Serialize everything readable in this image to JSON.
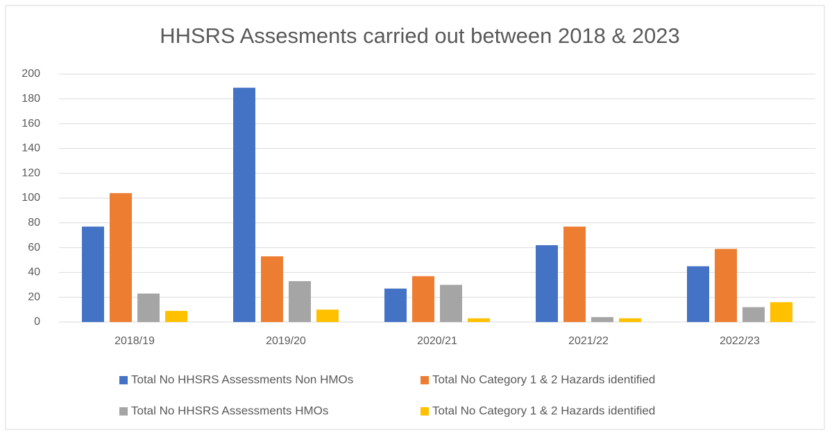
{
  "chart_data": {
    "type": "bar",
    "title": "HHSRS Assesments carried out between 2018 & 2023",
    "categories": [
      "2018/19",
      "2019/20",
      "2020/21",
      "2021/22",
      "2022/23"
    ],
    "series": [
      {
        "name": "Total No HHSRS Assessments Non HMOs",
        "color": "#4472c4",
        "values": [
          77,
          189,
          27,
          62,
          45
        ]
      },
      {
        "name": "Total No Category 1 & 2 Hazards identified",
        "color": "#ed7d31",
        "values": [
          104,
          53,
          37,
          77,
          59
        ]
      },
      {
        "name": "Total No HHSRS Assessments HMOs",
        "color": "#a5a5a5",
        "values": [
          23,
          33,
          30,
          4,
          12
        ]
      },
      {
        "name": "Total No Category 1 & 2 Hazards identified",
        "color": "#ffc000",
        "values": [
          9,
          10,
          3,
          3,
          16
        ]
      }
    ],
    "ylim": [
      0,
      200
    ],
    "yticks": [
      0,
      20,
      40,
      60,
      80,
      100,
      120,
      140,
      160,
      180,
      200
    ],
    "grid": true,
    "legend": "bottom"
  }
}
